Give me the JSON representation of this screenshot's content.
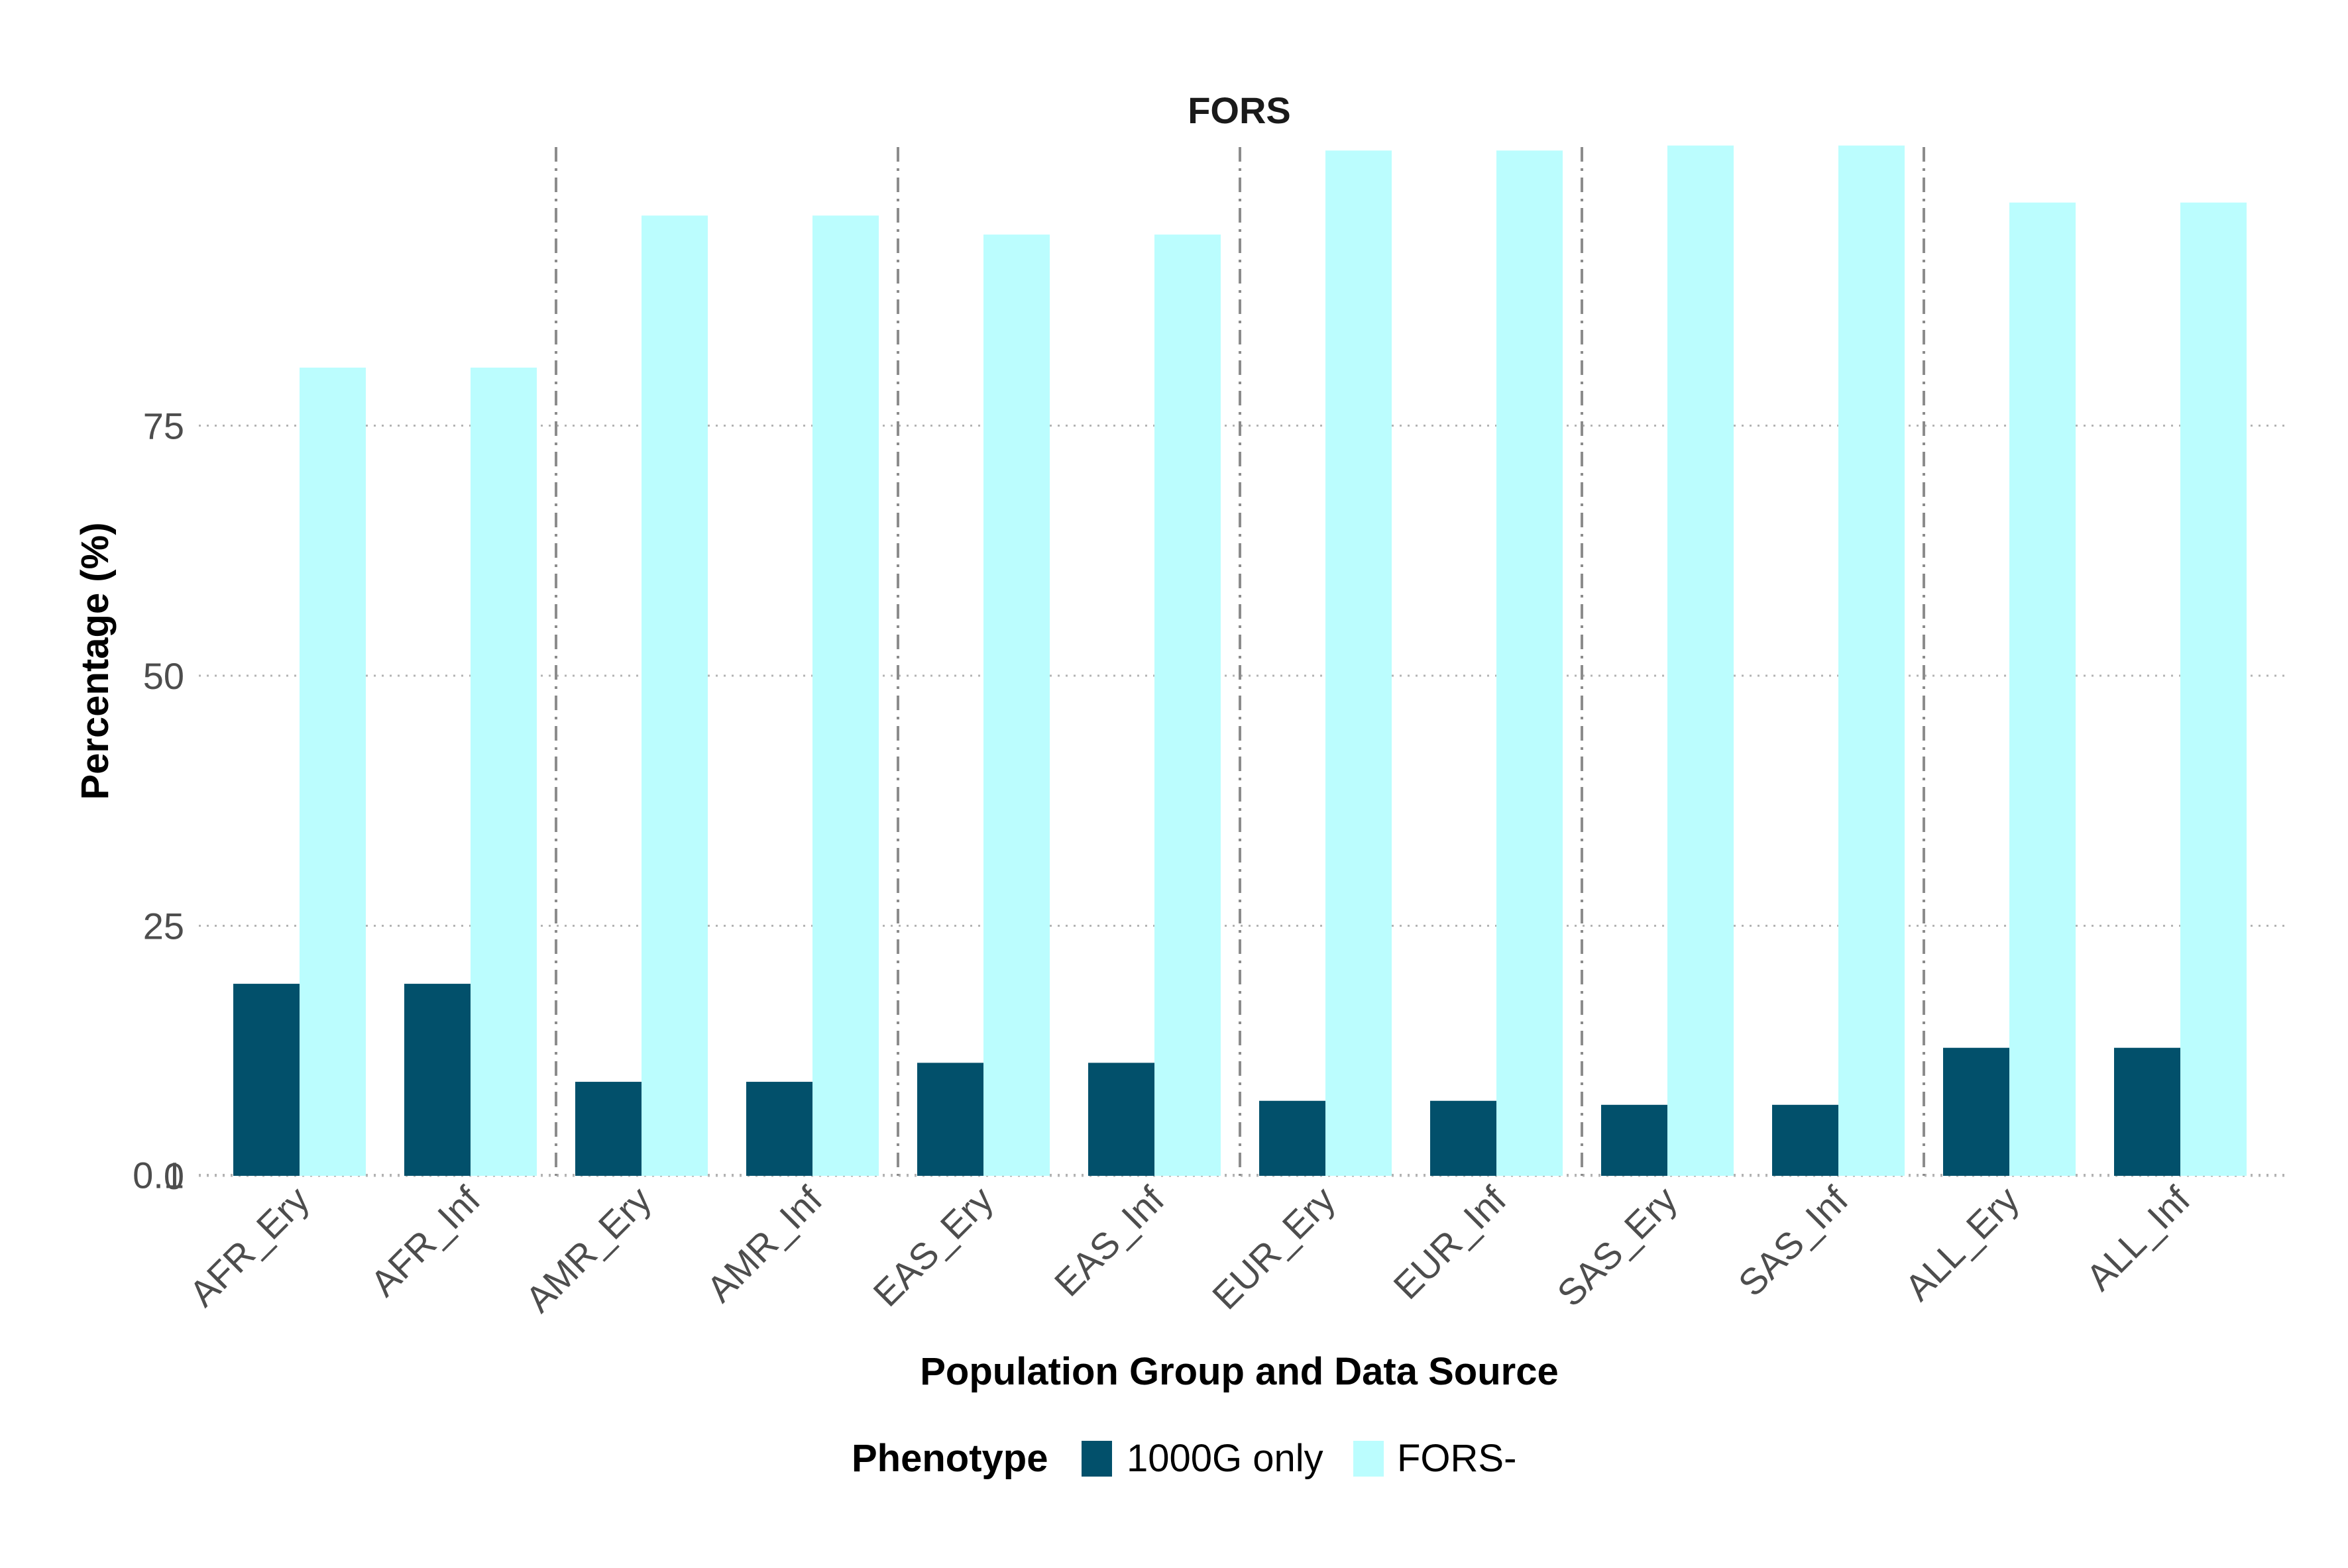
{
  "chart_data": {
    "type": "bar",
    "title": "FORS",
    "xlabel": "Population Group and Data Source",
    "ylabel": "Percentage (%)",
    "categories": [
      "AFR_Ery",
      "AFR_Inf",
      "AMR_Ery",
      "AMR_Inf",
      "EAS_Ery",
      "EAS_Inf",
      "EUR_Ery",
      "EUR_Inf",
      "SAS_Ery",
      "SAS_Inf",
      "ALL_Ery",
      "ALL_Inf"
    ],
    "series": [
      {
        "name": "1000G only",
        "color": "#02506b",
        "values": [
          19.2,
          19.2,
          9.4,
          9.4,
          11.3,
          11.3,
          7.5,
          7.5,
          7.1,
          7.1,
          12.8,
          12.8
        ]
      },
      {
        "name": "FORS-",
        "color": "#bbfdfe",
        "values": [
          80.8,
          80.8,
          96.0,
          96.0,
          94.1,
          94.1,
          102.5,
          102.5,
          103.0,
          103.0,
          97.3,
          97.3
        ]
      }
    ],
    "yticks": [
      0,
      0.1,
      25,
      50,
      75
    ],
    "ytick_labels": [
      "0",
      "0.1",
      "25",
      "50",
      "75"
    ],
    "ylim": [
      -0.2,
      103.0
    ],
    "grid": "horizontal dotted",
    "group_separators": "vertical dash-dot lines between population groups",
    "legend": {
      "title": "Phenotype",
      "position": "bottom"
    }
  }
}
